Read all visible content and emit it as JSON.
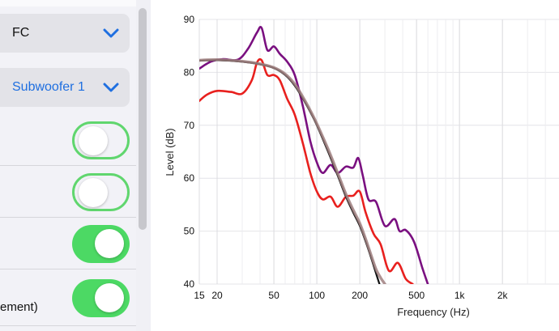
{
  "settings": {
    "channel_select": {
      "value": "FC",
      "icon": "chevron-down-icon"
    },
    "subwoofer_select": {
      "value": "Subwoofer 1",
      "icon": "chevron-down-icon"
    },
    "toggles": [
      {
        "state": "off"
      },
      {
        "state": "off"
      },
      {
        "state": "on"
      },
      {
        "state": "on",
        "label": "ement)"
      }
    ],
    "colors": {
      "accent_blue": "#1f6fe0",
      "toggle_green": "#4cd964"
    }
  },
  "chart_data": {
    "type": "line",
    "xlabel": "Frequency (Hz)",
    "ylabel": "Level (dB)",
    "xscale": "log",
    "xlim": [
      15,
      3500
    ],
    "ylim": [
      40,
      90
    ],
    "x_ticks": [
      15,
      20,
      50,
      100,
      200,
      500,
      1000,
      2000
    ],
    "x_tick_labels": [
      "15",
      "20",
      "50",
      "100",
      "200",
      "500",
      "1k",
      "2k"
    ],
    "y_ticks": [
      40,
      50,
      60,
      70,
      80,
      90
    ],
    "y_tick_labels": [
      "40",
      "50",
      "60",
      "70",
      "80",
      "90"
    ],
    "grid": true,
    "series": [
      {
        "color": "#7a1080",
        "x": [
          15,
          18,
          22,
          28,
          33,
          38,
          41,
          45,
          50,
          55,
          62,
          70,
          80,
          90,
          100,
          110,
          125,
          140,
          160,
          180,
          195,
          210,
          230,
          260,
          300,
          350,
          380,
          420,
          480,
          550,
          600
        ],
        "y": [
          80.7,
          82.0,
          82.5,
          82.4,
          84.5,
          87.5,
          88.4,
          84.2,
          84.9,
          83.5,
          82.0,
          79.5,
          73.5,
          67.0,
          63.0,
          61.0,
          62.5,
          61.0,
          62.2,
          62.0,
          63.8,
          60.5,
          56.0,
          55.5,
          51.0,
          52.3,
          50.0,
          50.2,
          48.0,
          43.0,
          40.0
        ]
      },
      {
        "color": "#e8201e",
        "x": [
          15,
          17,
          20,
          25,
          30,
          35,
          38,
          41,
          45,
          50,
          55,
          62,
          70,
          80,
          90,
          100,
          110,
          125,
          140,
          160,
          180,
          200,
          220,
          250,
          280,
          320,
          370,
          420,
          470
        ],
        "y": [
          74.6,
          75.8,
          76.5,
          76.3,
          76.0,
          78.5,
          81.8,
          82.3,
          79.5,
          79.5,
          78.5,
          75.0,
          72.0,
          66.5,
          61.0,
          57.5,
          56.0,
          56.5,
          54.6,
          56.5,
          56.7,
          57.5,
          53.5,
          49.5,
          47.5,
          42.5,
          44.0,
          41.0,
          40.0
        ]
      },
      {
        "color": "#111111",
        "x": [
          15,
          20,
          30,
          40,
          50,
          60,
          70,
          80,
          90,
          100,
          120,
          140,
          160,
          180,
          200,
          220,
          240,
          260,
          275
        ],
        "y": [
          82.2,
          82.3,
          82.0,
          81.5,
          80.8,
          79.5,
          77.5,
          75.0,
          72.5,
          70.0,
          65.0,
          60.5,
          56.5,
          53.5,
          51.0,
          48.0,
          45.0,
          42.0,
          40.0
        ]
      },
      {
        "color": "#a08080",
        "x": [
          15,
          20,
          30,
          40,
          50,
          60,
          70,
          80,
          90,
          100,
          120,
          140,
          160,
          180,
          200,
          220,
          240,
          260,
          280,
          300
        ],
        "y": [
          82.3,
          82.4,
          82.1,
          81.6,
          80.9,
          79.7,
          77.8,
          75.3,
          72.8,
          70.3,
          65.5,
          61.0,
          57.0,
          54.0,
          51.5,
          48.5,
          45.5,
          42.8,
          41.2,
          40.0
        ]
      }
    ]
  }
}
